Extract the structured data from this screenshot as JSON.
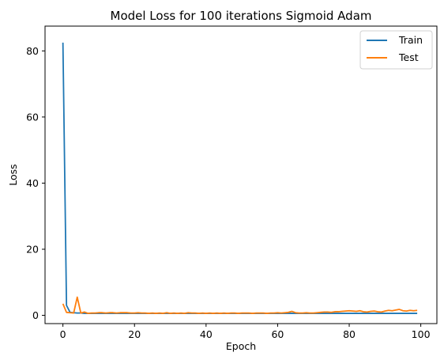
{
  "chart_data": {
    "type": "line",
    "title": "Model Loss for 100 iterations Sigmoid Adam",
    "xlabel": "Epoch",
    "ylabel": "Loss",
    "xlim": [
      -5,
      104.5
    ],
    "ylim": [
      -2.5,
      87.5
    ],
    "xticks": [
      0,
      20,
      40,
      60,
      80,
      100
    ],
    "yticks": [
      0,
      20,
      40,
      60,
      80
    ],
    "grid": false,
    "legend_position": "top-right",
    "series": [
      {
        "name": "Train",
        "color": "#1f77b4",
        "values": [
          82.5,
          3.0,
          0.9,
          0.8,
          0.7,
          0.7,
          0.6,
          0.6,
          0.6,
          0.6,
          0.6,
          0.6,
          0.6,
          0.6,
          0.6,
          0.6,
          0.6,
          0.6,
          0.6,
          0.6,
          0.6,
          0.6,
          0.6,
          0.6,
          0.6,
          0.6,
          0.6,
          0.6,
          0.6,
          0.6,
          0.6,
          0.6,
          0.6,
          0.6,
          0.6,
          0.6,
          0.6,
          0.6,
          0.6,
          0.6,
          0.6,
          0.6,
          0.6,
          0.6,
          0.6,
          0.6,
          0.6,
          0.6,
          0.6,
          0.6,
          0.6,
          0.6,
          0.6,
          0.6,
          0.6,
          0.6,
          0.6,
          0.6,
          0.6,
          0.6,
          0.6,
          0.6,
          0.6,
          0.6,
          0.6,
          0.6,
          0.6,
          0.6,
          0.6,
          0.6,
          0.6,
          0.6,
          0.6,
          0.6,
          0.6,
          0.6,
          0.6,
          0.6,
          0.6,
          0.6,
          0.6,
          0.6,
          0.6,
          0.6,
          0.6,
          0.6,
          0.6,
          0.6,
          0.6,
          0.6,
          0.6,
          0.6,
          0.6,
          0.6,
          0.6,
          0.6,
          0.6,
          0.6,
          0.6,
          0.6
        ]
      },
      {
        "name": "Test",
        "color": "#ff7f0e",
        "values": [
          3.5,
          0.9,
          0.8,
          0.7,
          5.5,
          0.7,
          1.0,
          0.6,
          0.7,
          0.7,
          0.8,
          0.8,
          0.7,
          0.8,
          0.8,
          0.7,
          0.8,
          0.8,
          0.8,
          0.7,
          0.7,
          0.8,
          0.7,
          0.7,
          0.6,
          0.7,
          0.6,
          0.7,
          0.6,
          0.8,
          0.6,
          0.7,
          0.6,
          0.7,
          0.6,
          0.8,
          0.7,
          0.7,
          0.6,
          0.7,
          0.6,
          0.7,
          0.6,
          0.7,
          0.6,
          0.7,
          0.6,
          0.7,
          0.7,
          0.6,
          0.7,
          0.7,
          0.7,
          0.6,
          0.7,
          0.7,
          0.7,
          0.6,
          0.7,
          0.7,
          0.8,
          0.7,
          0.8,
          0.9,
          1.2,
          0.8,
          0.7,
          0.7,
          0.8,
          0.7,
          0.7,
          0.8,
          0.9,
          1.0,
          1.0,
          0.9,
          1.1,
          1.1,
          1.2,
          1.3,
          1.4,
          1.3,
          1.2,
          1.4,
          1.1,
          1.0,
          1.2,
          1.3,
          1.1,
          1.0,
          1.3,
          1.5,
          1.4,
          1.6,
          1.8,
          1.4,
          1.3,
          1.5,
          1.4,
          1.5
        ]
      }
    ]
  }
}
